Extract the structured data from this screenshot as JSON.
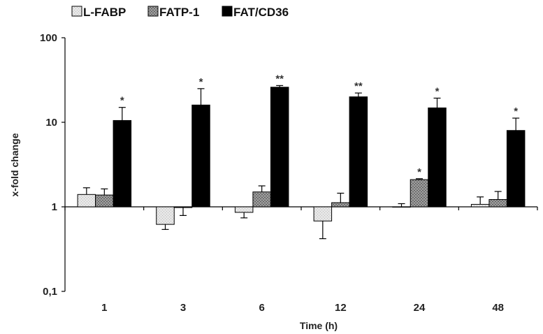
{
  "chart_data": {
    "type": "bar",
    "scale": "log",
    "xlabel": "Time (h)",
    "ylabel": "x-fold change",
    "ylim": [
      0.1,
      100
    ],
    "yticks": [
      {
        "value": 0.1,
        "label": "0,1"
      },
      {
        "value": 1,
        "label": "1"
      },
      {
        "value": 10,
        "label": "10"
      },
      {
        "value": 100,
        "label": "100"
      }
    ],
    "baseline": 1,
    "categories": [
      "1",
      "3",
      "6",
      "12",
      "24",
      "48"
    ],
    "legend_position": "top-left",
    "grid": false,
    "series": [
      {
        "name": "L-FABP",
        "color": "#e3e3e3",
        "pattern": "light-stipple",
        "values": [
          1.4,
          0.62,
          0.86,
          0.68,
          1.0,
          1.07
        ],
        "errors": [
          0.28,
          0.08,
          0.12,
          0.26,
          0.09,
          0.24
        ],
        "significance": [
          "",
          "",
          "",
          "",
          "",
          ""
        ]
      },
      {
        "name": "FATP-1",
        "color": "#8a8a8a",
        "pattern": "dark-stipple",
        "values": [
          1.38,
          0.98,
          1.5,
          1.12,
          2.1,
          1.22
        ],
        "errors": [
          0.25,
          0.19,
          0.27,
          0.33,
          0.05,
          0.3
        ],
        "significance": [
          "",
          "",
          "",
          "",
          "*",
          ""
        ]
      },
      {
        "name": "FAT/CD36",
        "color": "#000000",
        "pattern": "solid",
        "values": [
          10.5,
          16,
          26,
          20,
          14.8,
          8
        ],
        "errors": [
          4.5,
          9,
          1.2,
          2.2,
          4.5,
          3.2
        ],
        "significance": [
          "*",
          "*",
          "**",
          "**",
          "*",
          "*"
        ]
      }
    ]
  }
}
